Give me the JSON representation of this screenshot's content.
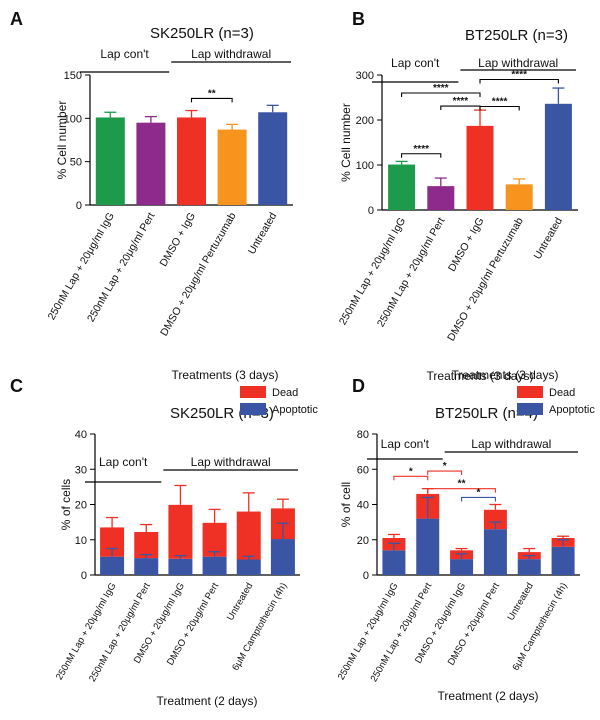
{
  "chart_data": [
    {
      "panel": "A",
      "type": "bar",
      "title": "SK250LR (n=3)",
      "xlabel": "",
      "ylabel": "% Cell number",
      "ylim": [
        0,
        150
      ],
      "yticks": [
        0,
        50,
        100,
        150
      ],
      "categories": [
        "250nM Lap + 20μg/ml IgG",
        "250nM Lap + 20μg/ml Pert",
        "DMSO + IgG",
        "DMSO + 20μg/ml Pertuzumab",
        "Untreated"
      ],
      "values": [
        101,
        95,
        101,
        87,
        107
      ],
      "errors": [
        6,
        7,
        8,
        6,
        8
      ],
      "colors": [
        "#1e9a4b",
        "#8e2a8c",
        "#ee3124",
        "#f7941d",
        "#3b55a5"
      ],
      "groups": [
        {
          "label": "Lap con't",
          "from": 0,
          "to": 1
        },
        {
          "label": "Lap withdrawal",
          "from": 2,
          "to": 4
        }
      ],
      "significance": [
        {
          "from": 2,
          "to": 3,
          "label": "**",
          "y": 123
        }
      ]
    },
    {
      "panel": "B",
      "type": "bar",
      "title": "BT250LR (n=3)",
      "xlabel": "Treatments (3 days)",
      "ylabel": "% Cell number",
      "ylim": [
        0,
        300
      ],
      "yticks": [
        0,
        100,
        200,
        300
      ],
      "categories": [
        "250nM Lap + 20μg/ml IgG",
        "250nM Lap + 20μg/ml Pert",
        "DMSO + IgG",
        "DMSO + 20μg/ml Pertuzumab",
        "Untreated"
      ],
      "values": [
        101,
        53,
        187,
        57,
        236
      ],
      "errors": [
        7,
        18,
        35,
        12,
        35
      ],
      "colors": [
        "#1e9a4b",
        "#8e2a8c",
        "#ee3124",
        "#f7941d",
        "#3b55a5"
      ],
      "groups": [
        {
          "label": "Lap con't",
          "from": 0,
          "to": 1
        },
        {
          "label": "Lap withdrawal",
          "from": 2,
          "to": 4
        }
      ],
      "significance": [
        {
          "from": 0,
          "to": 1,
          "label": "****",
          "y": 125
        },
        {
          "from": 1,
          "to": 2,
          "label": "****",
          "y": 231
        },
        {
          "from": 0,
          "to": 2,
          "label": "****",
          "y": 260
        },
        {
          "from": 2,
          "to": 3,
          "label": "****",
          "y": 230
        },
        {
          "from": 2,
          "to": 4,
          "label": "****",
          "y": 290
        }
      ]
    },
    {
      "panel": "C",
      "type": "bar",
      "stacked": true,
      "title": "SK250LR (n=3)",
      "caption": "Treatments (3 days)",
      "xlabel": "Treatment (2 days)",
      "ylabel": "% of cells",
      "ylim": [
        0,
        40
      ],
      "yticks": [
        0,
        10,
        20,
        30,
        40
      ],
      "categories": [
        "250nM Lap + 20μg/ml IgG",
        "250nM Lap + 20μg/ml Pert",
        "DMSO + 20μg/ml IgG",
        "DMSO + 20μg/ml Pert",
        "Untreated",
        "6μM Camptothecin (4h)"
      ],
      "series": [
        {
          "name": "Apoptotic",
          "color": "#3b55a5",
          "values": [
            5.2,
            4.8,
            4.6,
            5.2,
            4.4,
            10.2
          ],
          "errors": [
            2.3,
            1.0,
            0.9,
            1.4,
            0.9,
            4.5
          ]
        },
        {
          "name": "Dead",
          "color": "#ee3124",
          "values": [
            8.3,
            7.4,
            15.3,
            9.6,
            13.6,
            8.7
          ],
          "errors": [
            2.8,
            2.1,
            5.5,
            3.8,
            5.3,
            2.6
          ]
        }
      ],
      "legend": [
        "Dead",
        "Apoptotic"
      ],
      "legend_position": "top-right",
      "groups": [
        {
          "label": "Lap con't",
          "from": 0,
          "to": 1
        },
        {
          "label": "Lap withdrawal",
          "from": 2,
          "to": 5
        }
      ],
      "significance": []
    },
    {
      "panel": "D",
      "type": "bar",
      "stacked": true,
      "title": "BT250LR (n=4)",
      "caption": "Treatments (3 days)",
      "xlabel": "Treatment (2 days)",
      "ylabel": "% of cell",
      "ylim": [
        0,
        80
      ],
      "yticks": [
        0,
        20,
        40,
        60,
        80
      ],
      "categories": [
        "250nM Lap + 20μg/ml IgG",
        "250nM Lap + 20μg/ml Pert",
        "DMSO + 20μg/ml IgG",
        "DMSO + 20μg/ml Pert",
        "Untreated",
        "6μM Camptothecin (4h)"
      ],
      "series": [
        {
          "name": "Apoptotic",
          "color": "#3b55a5",
          "values": [
            14,
            32,
            9,
            26,
            9,
            16
          ],
          "errors": [
            4,
            12,
            3,
            4,
            2,
            4
          ]
        },
        {
          "name": "Dead",
          "color": "#ee3124",
          "values": [
            7,
            14,
            5,
            11,
            4,
            5
          ],
          "errors": [
            2,
            3,
            1,
            3,
            2,
            1
          ]
        }
      ],
      "legend": [
        "Dead",
        "Apoptotic"
      ],
      "legend_position": "top-right",
      "groups": [
        {
          "label": "Lap con't",
          "from": 0,
          "to": 1
        },
        {
          "label": "Lap withdrawal",
          "from": 2,
          "to": 5
        }
      ],
      "significance": [
        {
          "from": 0,
          "to": 1,
          "label": "*",
          "y": 56,
          "color": "#ee3124"
        },
        {
          "from": 1,
          "to": 2,
          "label": "*",
          "y": 59,
          "color": "#ee3124"
        },
        {
          "from": 1,
          "to": 3,
          "label": "**",
          "y": 49,
          "color": "#ee3124"
        },
        {
          "from": 2,
          "to": 3,
          "label": "*",
          "y": 44,
          "color": "#3b55a5"
        }
      ]
    }
  ]
}
